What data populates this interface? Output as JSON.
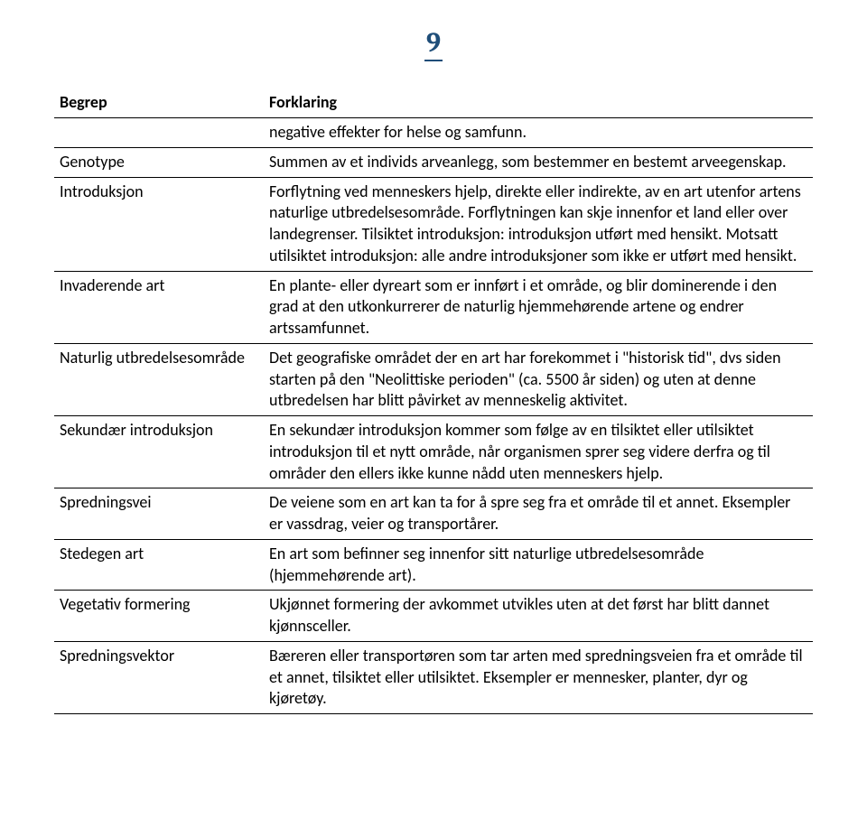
{
  "page_number": "9",
  "header": {
    "term": "Begrep",
    "definition": "Forklaring"
  },
  "continuation_row": {
    "term": "",
    "definition": "negative effekter for helse og samfunn."
  },
  "rows": [
    {
      "term": "Genotype",
      "definition": "Summen av et individs arveanlegg, som bestemmer en bestemt arveegenskap."
    },
    {
      "term": "Introduksjon",
      "definition": "Forflytning ved menneskers hjelp, direkte eller indirekte, av en art utenfor artens naturlige utbredelsesområde. Forflytningen kan skje innenfor et land eller over landegrenser. Tilsiktet introduksjon: introduksjon utført med hensikt. Motsatt utilsiktet introduksjon: alle andre introduksjoner som ikke er utført med hensikt."
    },
    {
      "term": "Invaderende art",
      "definition": "En plante- eller dyreart som er innført i et område, og blir dominerende i den grad at den utkonkurrerer de naturlig hjemmehørende artene og endrer artssamfunnet."
    },
    {
      "term": "Naturlig utbredelsesområde",
      "definition": "Det geografiske området der en art har forekommet i \"historisk tid\", dvs siden starten på den \"Neolittiske perioden\" (ca. 5500 år siden) og uten at denne utbredelsen har blitt påvirket av menneskelig aktivitet."
    },
    {
      "term": "Sekundær introduksjon",
      "definition": "En sekundær introduksjon kommer som følge av en tilsiktet eller utilsiktet introduksjon til et nytt område, når organismen sprer seg videre derfra og til områder den ellers ikke kunne nådd uten menneskers hjelp."
    },
    {
      "term": "Spredningsvei",
      "definition": "De veiene som en art kan ta for å spre seg fra et område til et annet. Eksempler er vassdrag, veier og transportårer."
    },
    {
      "term": "Stedegen art",
      "definition": "En art som befinner seg innenfor sitt naturlige utbredelsesområde (hjemmehørende art)."
    },
    {
      "term": "Vegetativ formering",
      "definition": "Ukjønnet formering der avkommet utvikles uten at det først har blitt dannet kjønnsceller."
    },
    {
      "term": "Spredningsvektor",
      "definition": "Bæreren eller transportøren som tar arten med spredningsveien fra et område til et annet, tilsiktet eller utilsiktet. Eksempler er mennesker, planter, dyr og kjøretøy."
    }
  ]
}
